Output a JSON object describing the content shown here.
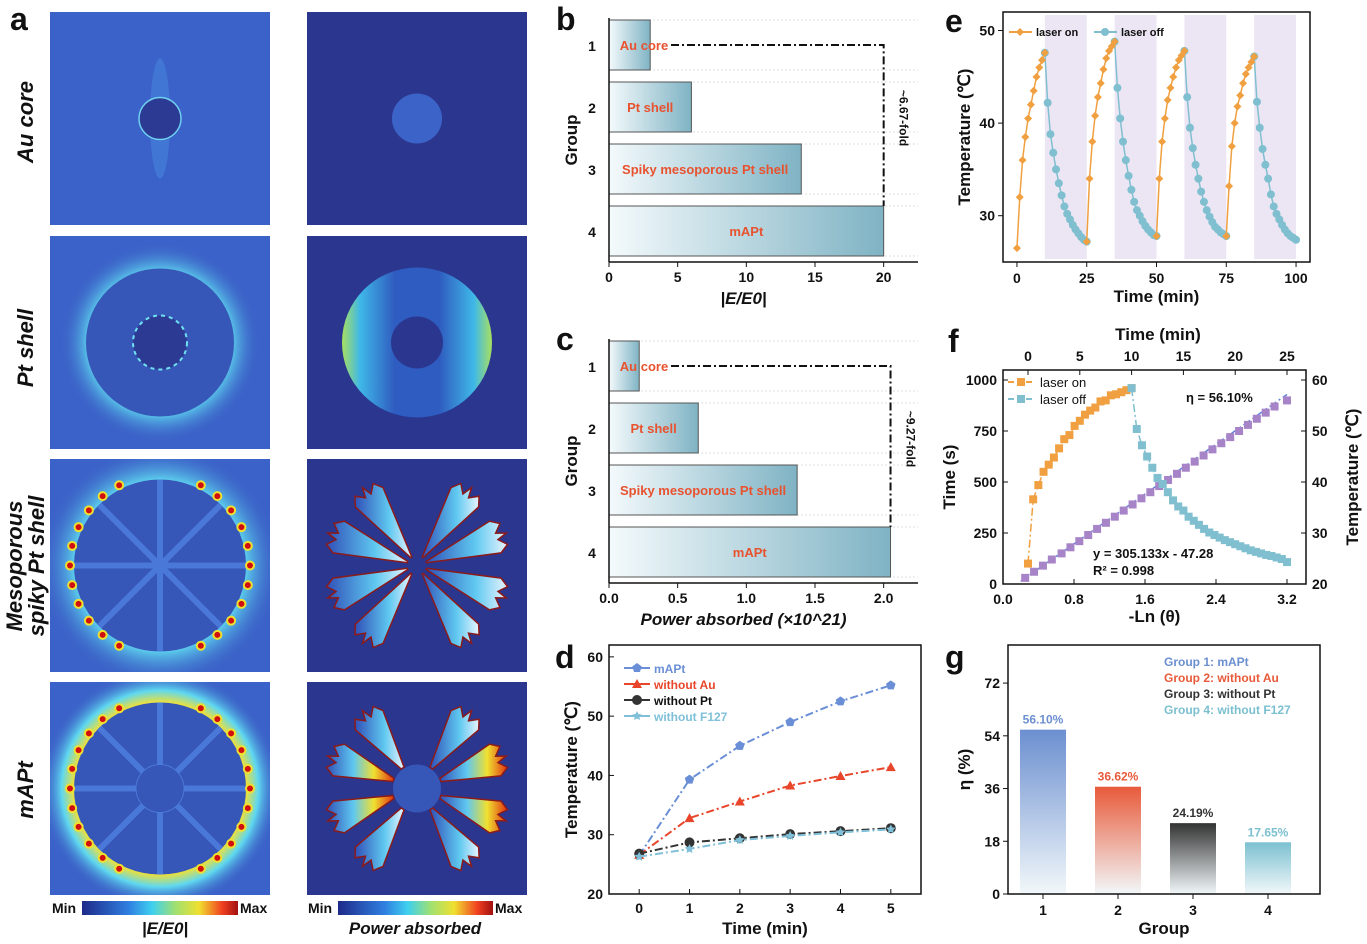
{
  "figure": {
    "panel_labels": {
      "a": "a",
      "b": "b",
      "c": "c",
      "d": "d",
      "e": "e",
      "f": "f",
      "g": "g"
    },
    "row_labels": [
      "Au core",
      "Pt shell",
      "Mesoporous",
      "spiky Pt shell",
      "mAPt"
    ],
    "colorbars": [
      {
        "min": "Min",
        "max": "Max",
        "label": "|E/E0|"
      },
      {
        "min": "Min",
        "max": "Max",
        "label": "Power absorbed"
      }
    ],
    "colors": {
      "red_label": "#e8522f",
      "bar_teal": "#7fb3c4",
      "cool_shade": "#ece6f4"
    }
  },
  "chart_data": [
    {
      "id": "b",
      "type": "bar",
      "orientation": "horizontal",
      "categories": [
        "1",
        "2",
        "3",
        "4"
      ],
      "bar_labels": [
        "Au core",
        "Pt shell",
        "Spiky mesoporous Pt shell",
        "mAPt"
      ],
      "values": [
        3,
        6,
        14,
        20
      ],
      "xlabel": "|E/E0|",
      "ylabel": "Group",
      "xlim": [
        0,
        22.5
      ],
      "xticks": [
        "0",
        "5",
        "10",
        "15",
        "20"
      ],
      "xtick_values": [
        0,
        5,
        10,
        15,
        20
      ],
      "annotation": "~6.67-fold"
    },
    {
      "id": "c",
      "type": "bar",
      "orientation": "horizontal",
      "categories": [
        "1",
        "2",
        "3",
        "4"
      ],
      "bar_labels": [
        "Au core",
        "Pt shell",
        "Spiky mesoporous Pt shell",
        "mAPt"
      ],
      "values": [
        0.22,
        0.65,
        1.37,
        2.05
      ],
      "xlabel": "Power absorbed (×10^21)",
      "ylabel": "Group",
      "xlim": [
        0,
        2.25
      ],
      "xticks": [
        "0.0",
        "0.5",
        "1.0",
        "1.5",
        "2.0"
      ],
      "xtick_values": [
        0,
        0.5,
        1,
        1.5,
        2
      ],
      "annotation": "~9.27-fold"
    },
    {
      "id": "d",
      "type": "line",
      "x": [
        0,
        1,
        2,
        3,
        4,
        5
      ],
      "series": [
        {
          "name": "mAPt",
          "color": "#6b8fd6",
          "marker": "pentagon",
          "values": [
            26.5,
            39.3,
            45.0,
            49.0,
            52.5,
            55.2
          ]
        },
        {
          "name": "without Au",
          "color": "#e8452a",
          "marker": "triangle",
          "values": [
            26.6,
            32.8,
            35.6,
            38.3,
            39.9,
            41.4
          ]
        },
        {
          "name": "without Pt",
          "color": "#333333",
          "marker": "circle",
          "values": [
            26.8,
            28.7,
            29.4,
            30.1,
            30.6,
            31.1
          ]
        },
        {
          "name": "without F127",
          "color": "#7fc0d8",
          "marker": "star",
          "values": [
            26.3,
            27.6,
            29.1,
            29.8,
            30.4,
            30.9
          ]
        }
      ],
      "xlabel": "Time (min)",
      "ylabel": "Temperature (℃)",
      "xlim": [
        -0.6,
        5.6
      ],
      "ylim": [
        20,
        62
      ],
      "xticks": [
        "0",
        "1",
        "2",
        "3",
        "4",
        "5"
      ],
      "yticks": [
        "20",
        "30",
        "40",
        "50",
        "60"
      ],
      "ytick_values": [
        20,
        30,
        40,
        50,
        60
      ],
      "legend": "top-left"
    },
    {
      "id": "e",
      "type": "line",
      "xlabel": "Time (min)",
      "ylabel": "Temperature (℃)",
      "xlim": [
        -5,
        105
      ],
      "ylim": [
        25,
        52
      ],
      "xticks": [
        "0",
        "25",
        "50",
        "75",
        "100"
      ],
      "xtick_values": [
        0,
        25,
        50,
        75,
        100
      ],
      "yticks": [
        "30",
        "40",
        "50"
      ],
      "ytick_values": [
        30,
        40,
        50
      ],
      "legend_on": "laser on",
      "legend_off": "laser off",
      "color_on": "#f0a040",
      "color_off": "#7fbfcf",
      "cycles": [
        {
          "start": 0,
          "heating": [
            26.5,
            32,
            36,
            38.5,
            40.5,
            42,
            43.5,
            45,
            46,
            46.8,
            47.6
          ],
          "cooling": [
            47.6,
            42.2,
            38.8,
            36.8,
            35,
            33.5,
            32.2,
            31,
            30.2,
            29.6,
            29,
            28.5,
            28.1,
            27.7,
            27.4,
            27.2
          ]
        },
        {
          "start": 25,
          "heating": [
            27.2,
            34,
            38,
            40.8,
            42.8,
            44.3,
            45.8,
            47,
            47.8,
            48.3,
            48.8
          ],
          "cooling": [
            48.8,
            43.8,
            40.5,
            38,
            36,
            34.3,
            32.8,
            31.5,
            30.6,
            30,
            29.4,
            28.9,
            28.5,
            28.2,
            27.9,
            27.8
          ]
        },
        {
          "start": 50,
          "heating": [
            27.8,
            34,
            38,
            40.5,
            42.5,
            43.8,
            45,
            46,
            46.8,
            47.3,
            47.8
          ],
          "cooling": [
            47.8,
            42.8,
            39.5,
            37.3,
            35.5,
            34,
            32.6,
            31.5,
            30.6,
            29.9,
            29.3,
            28.8,
            28.5,
            28.2,
            28,
            27.8
          ]
        },
        {
          "start": 75,
          "heating": [
            27.8,
            33.2,
            37.5,
            40,
            41.8,
            43,
            44.3,
            45.3,
            46,
            46.6,
            47.2
          ],
          "cooling": [
            47.2,
            42.3,
            39.5,
            37.2,
            35.5,
            34,
            32.3,
            31,
            30.2,
            29.6,
            29,
            28.5,
            28.1,
            27.8,
            27.6,
            27.4
          ]
        }
      ]
    },
    {
      "id": "f",
      "type": "scatter",
      "xlabel": "-Ln (θ)",
      "ylabel": "Time (s)",
      "top_xlabel": "Time (min)",
      "right_ylabel": "Temperature (℃)",
      "xticks": [
        "0.0",
        "0.8",
        "1.6",
        "2.4",
        "3.2"
      ],
      "xtick_values": [
        0,
        0.8,
        1.6,
        2.4,
        3.2
      ],
      "top_xticks": [
        "0",
        "5",
        "10",
        "15",
        "20",
        "25"
      ],
      "top_xtick_values": [
        0,
        5,
        10,
        15,
        20,
        25
      ],
      "yticks": [
        "0",
        "250",
        "500",
        "750",
        "1000"
      ],
      "ytick_values": [
        0,
        250,
        500,
        750,
        1000
      ],
      "right_yticks": [
        "20",
        "30",
        "40",
        "50",
        "60"
      ],
      "right_ytick_values": [
        20,
        30,
        40,
        50,
        60
      ],
      "legend_on": "laser on",
      "legend_off": "laser off",
      "color_on": "#f0a040",
      "color_off": "#7fbfcf",
      "color_fit": "#a784c8",
      "eta": "η = 56.10%",
      "equation": "y = 305.133x - 47.28",
      "r2": "R² = 0.998",
      "fit": {
        "slope": 305.133,
        "intercept": -47.28
      },
      "heating_time": [
        0,
        0.5,
        1,
        1.5,
        2,
        2.5,
        3,
        3.5,
        4,
        4.5,
        5,
        5.5,
        6,
        6.5,
        7,
        7.5,
        8,
        8.5,
        9,
        9.5,
        10
      ],
      "heating_temp": [
        24,
        36.6,
        39.4,
        42,
        43.4,
        44.8,
        46.6,
        48.4,
        49.2,
        51,
        52,
        53.2,
        54,
        54.6,
        55.8,
        56,
        57,
        57.2,
        57.6,
        58,
        58.4
      ],
      "cooling_temp": [
        58.4,
        50.4,
        47.2,
        45,
        42.8,
        40.8,
        39.6,
        38,
        36.4,
        35.2,
        34.4,
        33.2,
        32.4,
        31.6,
        30.8,
        30.1,
        29.6,
        29.1,
        28.6,
        28.2,
        27.8,
        27.4,
        27,
        26.6,
        26.3,
        26,
        25.7,
        25.5,
        25.2,
        24.9,
        24.3
      ],
      "scatter_x": [
        0.25,
        0.35,
        0.45,
        0.55,
        0.66,
        0.76,
        0.86,
        0.96,
        1.06,
        1.16,
        1.26,
        1.36,
        1.46,
        1.56,
        1.66,
        1.76,
        1.86,
        1.96,
        2.06,
        2.16,
        2.26,
        2.36,
        2.46,
        2.56,
        2.66,
        2.76,
        2.86,
        2.96,
        3.06,
        3.2
      ],
      "scatter_y": [
        30,
        60,
        90,
        120,
        150,
        180,
        210,
        240,
        270,
        300,
        330,
        360,
        390,
        420,
        450,
        480,
        510,
        540,
        570,
        600,
        630,
        660,
        690,
        720,
        750,
        780,
        810,
        840,
        870,
        900
      ]
    },
    {
      "id": "g",
      "type": "bar",
      "categories": [
        "1",
        "2",
        "3",
        "4"
      ],
      "values": [
        56.1,
        36.62,
        24.19,
        17.65
      ],
      "value_labels": [
        "56.10%",
        "36.62%",
        "24.19%",
        "17.65%"
      ],
      "colors": [
        "#6b8fd0",
        "#e85a3a",
        "#333333",
        "#7cc0d0"
      ],
      "legend": [
        "Group 1: mAPt",
        "Group 2: without Au",
        "Group 3: without Pt",
        "Group 4: without F127"
      ],
      "xlabel": "Group",
      "ylabel": "η (%)",
      "ylim": [
        0,
        85
      ],
      "yticks": [
        "0",
        "18",
        "36",
        "54",
        "72"
      ],
      "ytick_values": [
        0,
        18,
        36,
        54,
        72
      ]
    }
  ]
}
